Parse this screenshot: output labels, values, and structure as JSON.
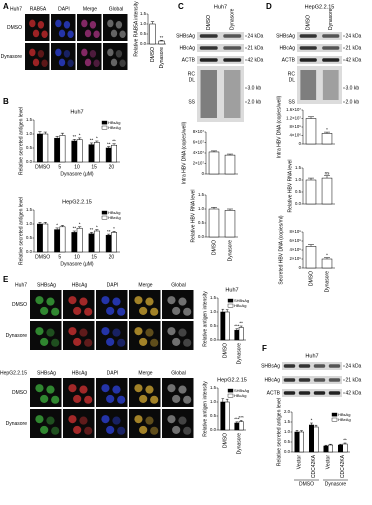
{
  "figure": {
    "panels": [
      "A",
      "B",
      "C",
      "D",
      "E",
      "F"
    ],
    "a": {
      "headers": [
        "Huh7",
        "RAB5A",
        "DAPI",
        "Merge",
        "Global"
      ],
      "rows": [
        "DMSO",
        "Dynasore"
      ]
    },
    "c": {
      "title": "Huh7",
      "lanes": [
        "DMSO",
        "Dynasore"
      ],
      "blots": [
        "SHBsAg",
        "HBcAg",
        "ACTB"
      ],
      "sizes": [
        "24 kDa",
        "21 kDa",
        "42 kDa"
      ],
      "forms": [
        "RC",
        "DL",
        "SS"
      ],
      "markers": [
        "3.0 kb",
        "2.0 kb"
      ]
    },
    "d": {
      "title": "HepG2.2.15",
      "lanes": [
        "DMSO",
        "Dynasore"
      ],
      "blots": [
        "SHBsAg",
        "HBcAg",
        "ACTB"
      ],
      "sizes": [
        "24 kDa",
        "21 kDa",
        "42 kDa"
      ],
      "forms": [
        "RC",
        "DL",
        "SS"
      ],
      "markers": [
        "3.0 kb",
        "2.0 kb"
      ]
    },
    "e": [
      {
        "headers": [
          "Huh7",
          "SHBsAg",
          "HBcAg",
          "DAPI",
          "Merge",
          "Global"
        ],
        "rows": [
          "DMSO",
          "Dynasore"
        ]
      },
      {
        "headers": [
          "HepG2.2.15",
          "SHBsAg",
          "HBcAg",
          "DAPI",
          "Merge",
          "Global"
        ],
        "rows": [
          "DMSO",
          "Dynasore"
        ]
      }
    ],
    "f": {
      "title": "Huh7",
      "blots": [
        "SHBsAg",
        "HBcAg",
        "ACTB"
      ],
      "sizes": [
        "24 kDa",
        "21 kDa",
        "42 kDa"
      ]
    }
  },
  "chart_data": [
    {
      "type": "bar",
      "ylabel": "Relative RAB5A intensity",
      "categories": [
        "DMSO",
        "Dynasore"
      ],
      "series": [
        {
          "color": "#ffffff",
          "values": [
            1.0,
            0.15
          ],
          "errors": [
            0.12,
            0.03
          ],
          "annotations": [
            null,
            "**"
          ]
        }
      ],
      "ylim": [
        0,
        1.5
      ],
      "yticks": [
        {
          "value": 0,
          "label": "0.0"
        },
        0.5,
        {
          "value": 1,
          "label": "1.0"
        },
        1.5
      ]
    },
    {
      "type": "bar",
      "title": "Huh7",
      "ylabel": "Relative secreted antigen level",
      "xlabel": "Dynasore (μM)",
      "categories": [
        "DMSO",
        "5",
        "10",
        "15",
        "20"
      ],
      "series": [
        {
          "name": "HBsAg",
          "color": "#000000",
          "values": [
            1.0,
            0.85,
            0.75,
            0.62,
            0.5
          ],
          "errors": [
            0.08,
            0.07,
            0.06,
            0.06,
            0.05
          ],
          "annotations": [
            null,
            null,
            "**",
            "**",
            "**"
          ]
        },
        {
          "name": "HBeAg",
          "color": "#ffffff",
          "values": [
            1.0,
            0.95,
            0.8,
            0.7,
            0.6
          ],
          "errors": [
            0.07,
            0.08,
            0.06,
            0.05,
            0.05
          ],
          "annotations": [
            null,
            null,
            "*",
            "*",
            "**"
          ]
        }
      ],
      "ylim": [
        0,
        1.5
      ],
      "yticks": [
        {
          "value": 0,
          "label": "0.0"
        },
        0.5,
        {
          "value": 1,
          "label": "1.0"
        },
        1.5
      ],
      "legend": "upper right"
    },
    {
      "type": "bar",
      "title": "HepG2.2.15",
      "ylabel": "Relative secreted antigen level",
      "xlabel": "Dynasore (μM)",
      "categories": [
        "DMSO",
        "5",
        "10",
        "15",
        "20"
      ],
      "series": [
        {
          "name": "HBsAg",
          "color": "#000000",
          "values": [
            1.0,
            0.8,
            0.7,
            0.65,
            0.6
          ],
          "errors": [
            0.06,
            0.06,
            0.05,
            0.05,
            0.04
          ],
          "annotations": [
            null,
            "*",
            "**",
            "**",
            "**"
          ]
        },
        {
          "name": "HBeAg",
          "color": "#ffffff",
          "values": [
            1.0,
            0.9,
            0.85,
            0.75,
            0.7
          ],
          "errors": [
            0.06,
            0.05,
            0.05,
            0.05,
            0.04
          ],
          "annotations": [
            null,
            null,
            "*",
            "*",
            "*"
          ]
        }
      ],
      "ylim": [
        0,
        1.5
      ],
      "yticks": [
        {
          "value": 0,
          "label": "0.0"
        },
        0.5,
        {
          "value": 1,
          "label": "1.0"
        },
        1.5
      ],
      "legend": "upper right"
    },
    {
      "type": "bar",
      "ylabel": "Intra HBV DNA (copies/well)",
      "categories": [
        null,
        null
      ],
      "series": [
        {
          "color": "#ffffff",
          "values": [
            42000000,
            36000000
          ],
          "errors": [
            2000000,
            2000000
          ],
          "annotations": [
            null,
            null
          ]
        }
      ],
      "ylim": [
        0,
        80000000
      ],
      "yticks": [
        0,
        {
          "value": 20000000,
          "label": "2×10⁷"
        },
        {
          "value": 40000000,
          "label": "4×10⁷"
        },
        {
          "value": 60000000,
          "label": "6×10⁷"
        },
        {
          "value": 80000000,
          "label": "8×10⁷"
        }
      ]
    },
    {
      "type": "bar",
      "ylabel": "Relative HBV RNA level",
      "categories": [
        "DMSO",
        "Dynasore"
      ],
      "series": [
        {
          "color": "#ffffff",
          "values": [
            1.0,
            0.95
          ],
          "errors": [
            0.06,
            0.05
          ],
          "annotations": [
            null,
            null
          ]
        }
      ],
      "ylim": [
        0,
        1.5
      ],
      "yticks": [
        {
          "value": 0,
          "label": "0.0"
        },
        0.5,
        {
          "value": 1,
          "label": "1.0"
        },
        1.5
      ]
    },
    {
      "type": "bar",
      "ylabel": "Intra HBV DNA (copies/well)",
      "categories": [
        null,
        null
      ],
      "series": [
        {
          "color": "#ffffff",
          "values": [
            12000000,
            5000000
          ],
          "errors": [
            800000,
            600000
          ],
          "annotations": [
            null,
            "*"
          ]
        }
      ],
      "ylim": [
        0,
        16000000
      ],
      "yticks": [
        0,
        {
          "value": 4000000,
          "label": "4×10⁶"
        },
        {
          "value": 8000000,
          "label": "8×10⁶"
        },
        {
          "value": 12000000,
          "label": "1.2×10⁷"
        },
        {
          "value": 16000000,
          "label": "1.6×10⁷"
        }
      ]
    },
    {
      "type": "bar",
      "ylabel": "Relative HBV RNA level",
      "categories": [
        null,
        null
      ],
      "series": [
        {
          "color": "#ffffff",
          "values": [
            1.0,
            1.08
          ],
          "errors": [
            0.08,
            0.1
          ],
          "annotations": [
            null,
            "ns"
          ]
        }
      ],
      "ylim": [
        0,
        1.5
      ],
      "yticks": [
        {
          "value": 0,
          "label": "0.0"
        },
        0.5,
        {
          "value": 1,
          "label": "1.0"
        },
        1.5
      ]
    },
    {
      "type": "bar",
      "ylabel": "Secreted HBV DNA (copies/ml)",
      "categories": [
        "DMSO",
        "Dynasore"
      ],
      "series": [
        {
          "color": "#ffffff",
          "values": [
            4800000,
            2000000
          ],
          "errors": [
            400000,
            300000
          ],
          "annotations": [
            null,
            "*"
          ]
        }
      ],
      "ylim": [
        0,
        8000000
      ],
      "yticks": [
        0,
        {
          "value": 2000000,
          "label": "2×10⁶"
        },
        {
          "value": 4000000,
          "label": "4×10⁶"
        },
        {
          "value": 6000000,
          "label": "6×10⁶"
        },
        {
          "value": 8000000,
          "label": "8×10⁶"
        }
      ]
    },
    {
      "type": "bar",
      "title": "Huh7",
      "ylabel": "Relative antigen intensity",
      "categories": [
        "DMSO",
        "Dynasore"
      ],
      "series": [
        {
          "name": "SHBsAg",
          "color": "#000000",
          "values": [
            1.0,
            0.35
          ],
          "errors": [
            0.1,
            0.05
          ],
          "annotations": [
            null,
            "***"
          ]
        },
        {
          "name": "HBcAg",
          "color": "#ffffff",
          "values": [
            1.0,
            0.45
          ],
          "errors": [
            0.08,
            0.05
          ],
          "annotations": [
            null,
            "**"
          ]
        }
      ],
      "ylim": [
        0,
        1.5
      ],
      "yticks": [
        {
          "value": 0,
          "label": "0.0"
        },
        0.5,
        {
          "value": 1,
          "label": "1.0"
        },
        1.5
      ],
      "legend": "upper right"
    },
    {
      "type": "bar",
      "title": "HepG2.2.15",
      "ylabel": "Relative antigen intensity",
      "categories": [
        "DMSO",
        "Dynasore"
      ],
      "series": [
        {
          "name": "SHBsAg",
          "color": "#000000",
          "values": [
            1.0,
            0.25
          ],
          "errors": [
            0.12,
            0.04
          ],
          "annotations": [
            null,
            "***"
          ]
        },
        {
          "name": "HBcAg",
          "color": "#ffffff",
          "values": [
            1.0,
            0.3
          ],
          "errors": [
            0.1,
            0.04
          ],
          "annotations": [
            null,
            "***"
          ]
        }
      ],
      "ylim": [
        0,
        1.5
      ],
      "yticks": [
        {
          "value": 0,
          "label": "0.0"
        },
        0.5,
        {
          "value": 1,
          "label": "1.0"
        },
        1.5
      ],
      "legend": "upper right"
    },
    {
      "type": "bar",
      "ylabel": "Relative secreted antigen level",
      "categories": [
        "Vector",
        "CDC42KA",
        "Vector",
        "CDC42KA"
      ],
      "groups": [
        "DMSO",
        "Dynasore"
      ],
      "series": [
        {
          "name": "HBsAg",
          "color": "#000000",
          "values": [
            1.0,
            1.35,
            0.3,
            0.35
          ],
          "errors": [
            0.08,
            0.1,
            0.04,
            0.04
          ],
          "annotations": [
            null,
            "*",
            null,
            null
          ]
        },
        {
          "name": "HBeAg",
          "color": "#ffffff",
          "values": [
            1.0,
            1.25,
            0.35,
            0.4
          ],
          "errors": [
            0.07,
            0.09,
            0.04,
            0.05
          ],
          "annotations": [
            null,
            null,
            null,
            "**"
          ]
        }
      ],
      "ylim": [
        0,
        2
      ],
      "yticks": [
        {
          "value": 0,
          "label": "0.0"
        },
        0.5,
        {
          "value": 1,
          "label": "1.0"
        },
        1.5,
        {
          "value": 2,
          "label": "2.0"
        }
      ],
      "legend": "upper right"
    }
  ]
}
